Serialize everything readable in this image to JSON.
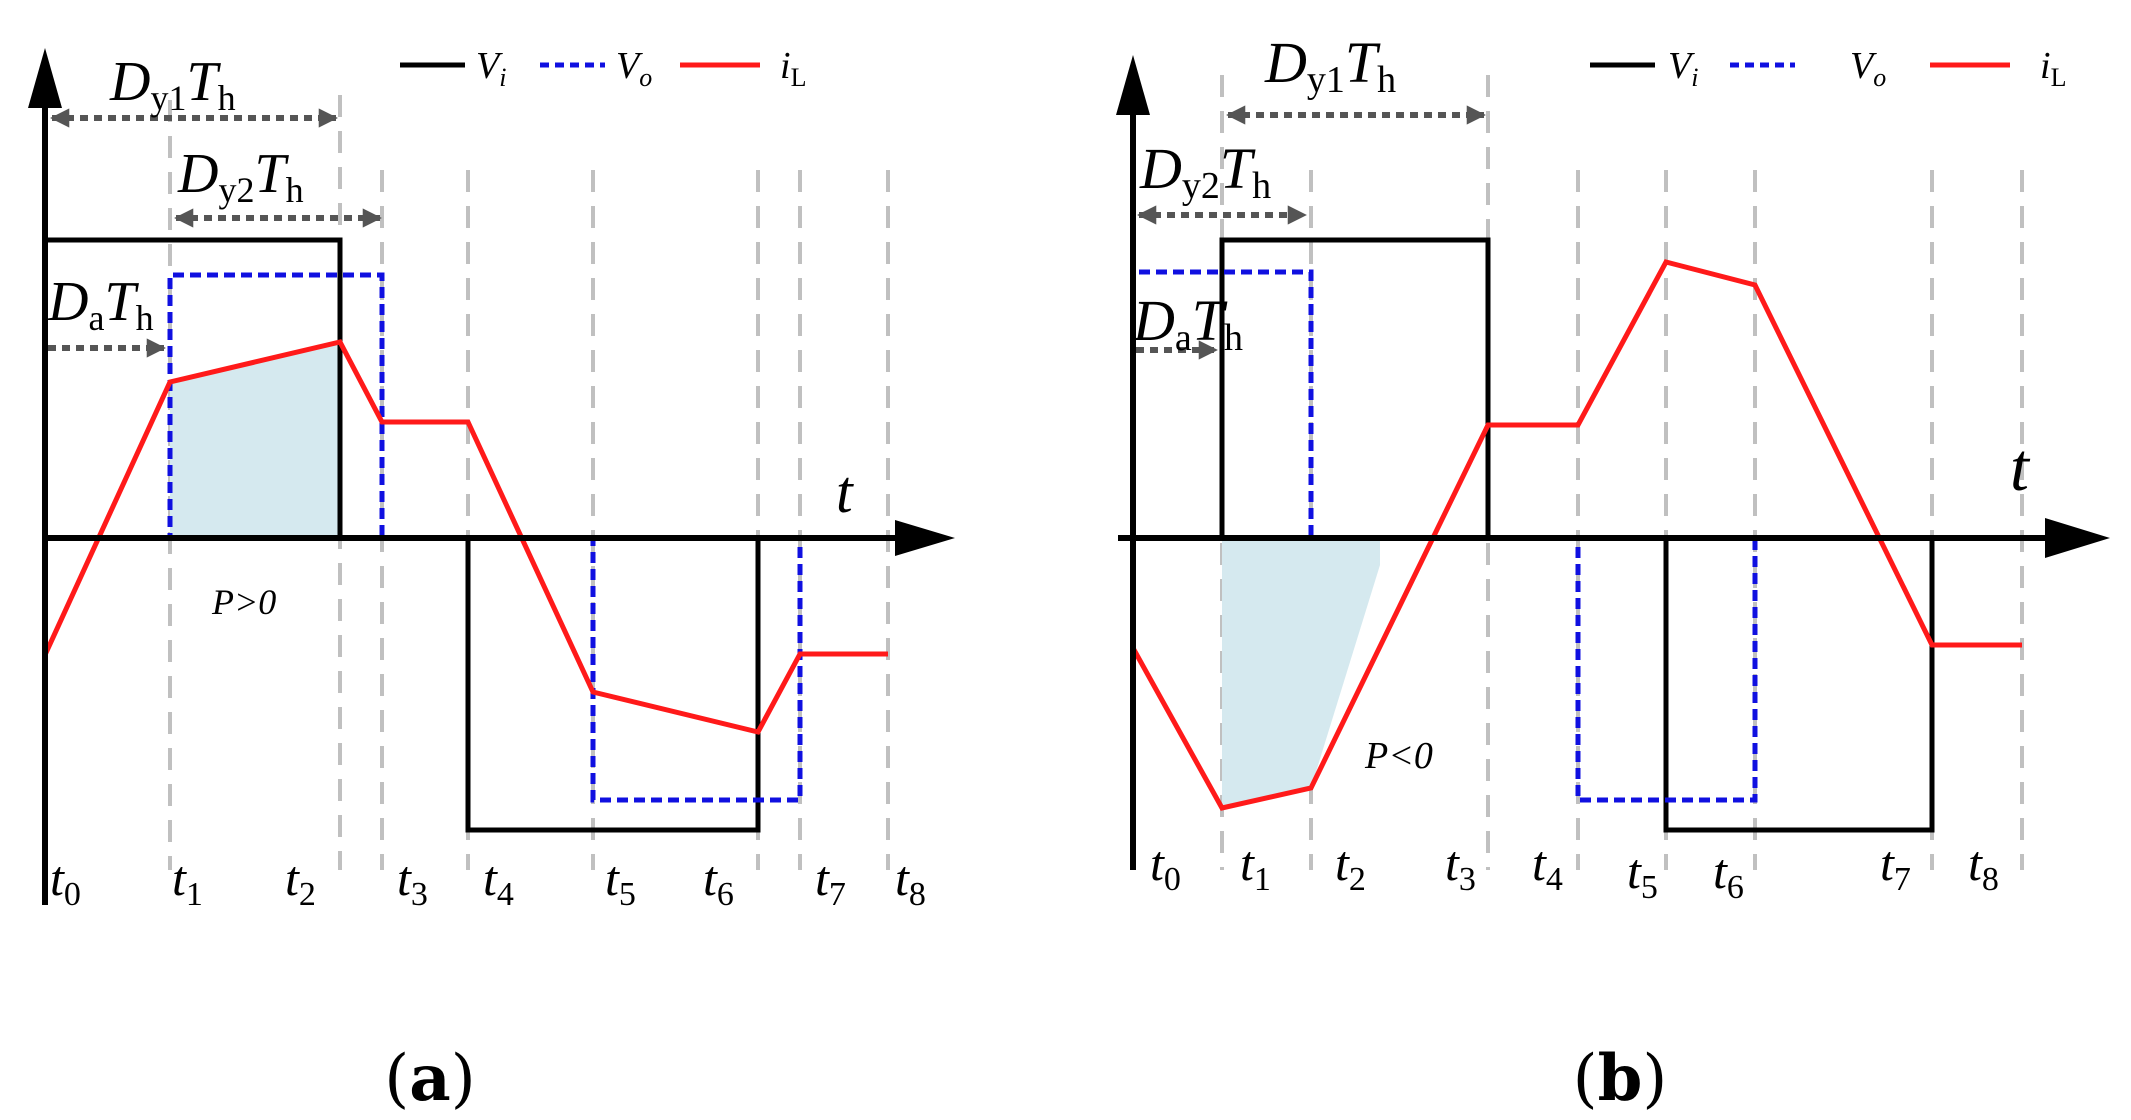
{
  "colors": {
    "vi": "#000000",
    "vo": "#1010e0",
    "il": "#ff1a1a",
    "shade": "#d5e9ef",
    "grid": "#c0c0c0",
    "arrow": "#555555"
  },
  "legend": {
    "vi_label": "V",
    "vi_sub": "i",
    "vo_label": "V",
    "vo_sub": "o",
    "il_label": "i",
    "il_sub": "L"
  },
  "axis": {
    "t_label": "t"
  },
  "panel_a": {
    "caption_open": "(",
    "caption_letter": "a",
    "caption_close": ")",
    "power_label": "P>0",
    "d_y1": {
      "main": "D",
      "sub": "y1",
      "main2": "T",
      "sub2": "h"
    },
    "d_y2": {
      "main": "D",
      "sub": "y2",
      "main2": "T",
      "sub2": "h"
    },
    "d_a": {
      "main": "D",
      "sub": "a",
      "main2": "T",
      "sub2": "h"
    },
    "time_labels": [
      {
        "main": "t",
        "sub": "0"
      },
      {
        "main": "t",
        "sub": "1"
      },
      {
        "main": "t",
        "sub": "2"
      },
      {
        "main": "t",
        "sub": "3"
      },
      {
        "main": "t",
        "sub": "4"
      },
      {
        "main": "t",
        "sub": "5"
      },
      {
        "main": "t",
        "sub": "6"
      },
      {
        "main": "t",
        "sub": "7"
      },
      {
        "main": "t",
        "sub": "8"
      }
    ]
  },
  "panel_b": {
    "caption_open": "(",
    "caption_letter": "b",
    "caption_close": ")",
    "power_label": "P<0",
    "d_y1": {
      "main": "D",
      "sub": "y1",
      "main2": "T",
      "sub2": "h"
    },
    "d_y2": {
      "main": "D",
      "sub": "y2",
      "main2": "T",
      "sub2": "h"
    },
    "d_a": {
      "main": "D",
      "sub": "a",
      "main2": "T",
      "sub2": "h"
    },
    "time_labels": [
      {
        "main": "t",
        "sub": "0"
      },
      {
        "main": "t",
        "sub": "1"
      },
      {
        "main": "t",
        "sub": "2"
      },
      {
        "main": "t",
        "sub": "3"
      },
      {
        "main": "t",
        "sub": "4"
      },
      {
        "main": "t",
        "sub": "5"
      },
      {
        "main": "t",
        "sub": "6"
      },
      {
        "main": "t",
        "sub": "7"
      },
      {
        "main": "t",
        "sub": "8"
      }
    ]
  }
}
